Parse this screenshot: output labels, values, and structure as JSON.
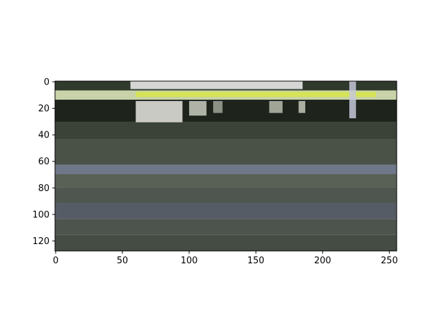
{
  "chart_data": {
    "type": "heatmap",
    "title": "",
    "xlabel": "",
    "ylabel": "",
    "image_shape": [
      128,
      256
    ],
    "xlim": [
      -0.5,
      255.5
    ],
    "ylim": [
      127.5,
      -0.5
    ],
    "y_inverted": true,
    "grid": false,
    "xticks": [
      0,
      50,
      100,
      150,
      200,
      250
    ],
    "yticks": [
      0,
      20,
      40,
      60,
      80,
      100,
      120
    ],
    "bands": [
      {
        "y0": 0,
        "y1": 7,
        "color": "#2f3a2c"
      },
      {
        "y0": 7,
        "y1": 14,
        "color": "#c9d2a8"
      },
      {
        "y0": 14,
        "y1": 31,
        "color": "#1e241c"
      },
      {
        "y0": 31,
        "y1": 44,
        "color": "#3b4338"
      },
      {
        "y0": 44,
        "y1": 63,
        "color": "#4a5147"
      },
      {
        "y0": 63,
        "y1": 70,
        "color": "#6f7889"
      },
      {
        "y0": 70,
        "y1": 80,
        "color": "#596055"
      },
      {
        "y0": 80,
        "y1": 92,
        "color": "#4f5650"
      },
      {
        "y0": 92,
        "y1": 104,
        "color": "#555c66"
      },
      {
        "y0": 104,
        "y1": 116,
        "color": "#4d544d"
      },
      {
        "y0": 116,
        "y1": 128,
        "color": "#454c44"
      }
    ],
    "highlights": [
      {
        "x0": 56,
        "x1": 185,
        "y0": 0,
        "y1": 6,
        "color": "#f2f2f2"
      },
      {
        "x0": 60,
        "x1": 240,
        "y0": 8,
        "y1": 12,
        "color": "#d6e64a"
      },
      {
        "x0": 60,
        "x1": 95,
        "y0": 15,
        "y1": 31,
        "color": "#e8e8e0"
      },
      {
        "x0": 100,
        "x1": 113,
        "y0": 15,
        "y1": 26,
        "color": "#c9ccc0"
      },
      {
        "x0": 118,
        "x1": 125,
        "y0": 15,
        "y1": 24,
        "color": "#9fa596"
      },
      {
        "x0": 160,
        "x1": 170,
        "y0": 15,
        "y1": 24,
        "color": "#b7bcad"
      },
      {
        "x0": 182,
        "x1": 187,
        "y0": 15,
        "y1": 24,
        "color": "#c2c7b8"
      },
      {
        "x0": 220,
        "x1": 225,
        "y0": 0,
        "y1": 28,
        "color": "#c6c8d8"
      }
    ]
  }
}
